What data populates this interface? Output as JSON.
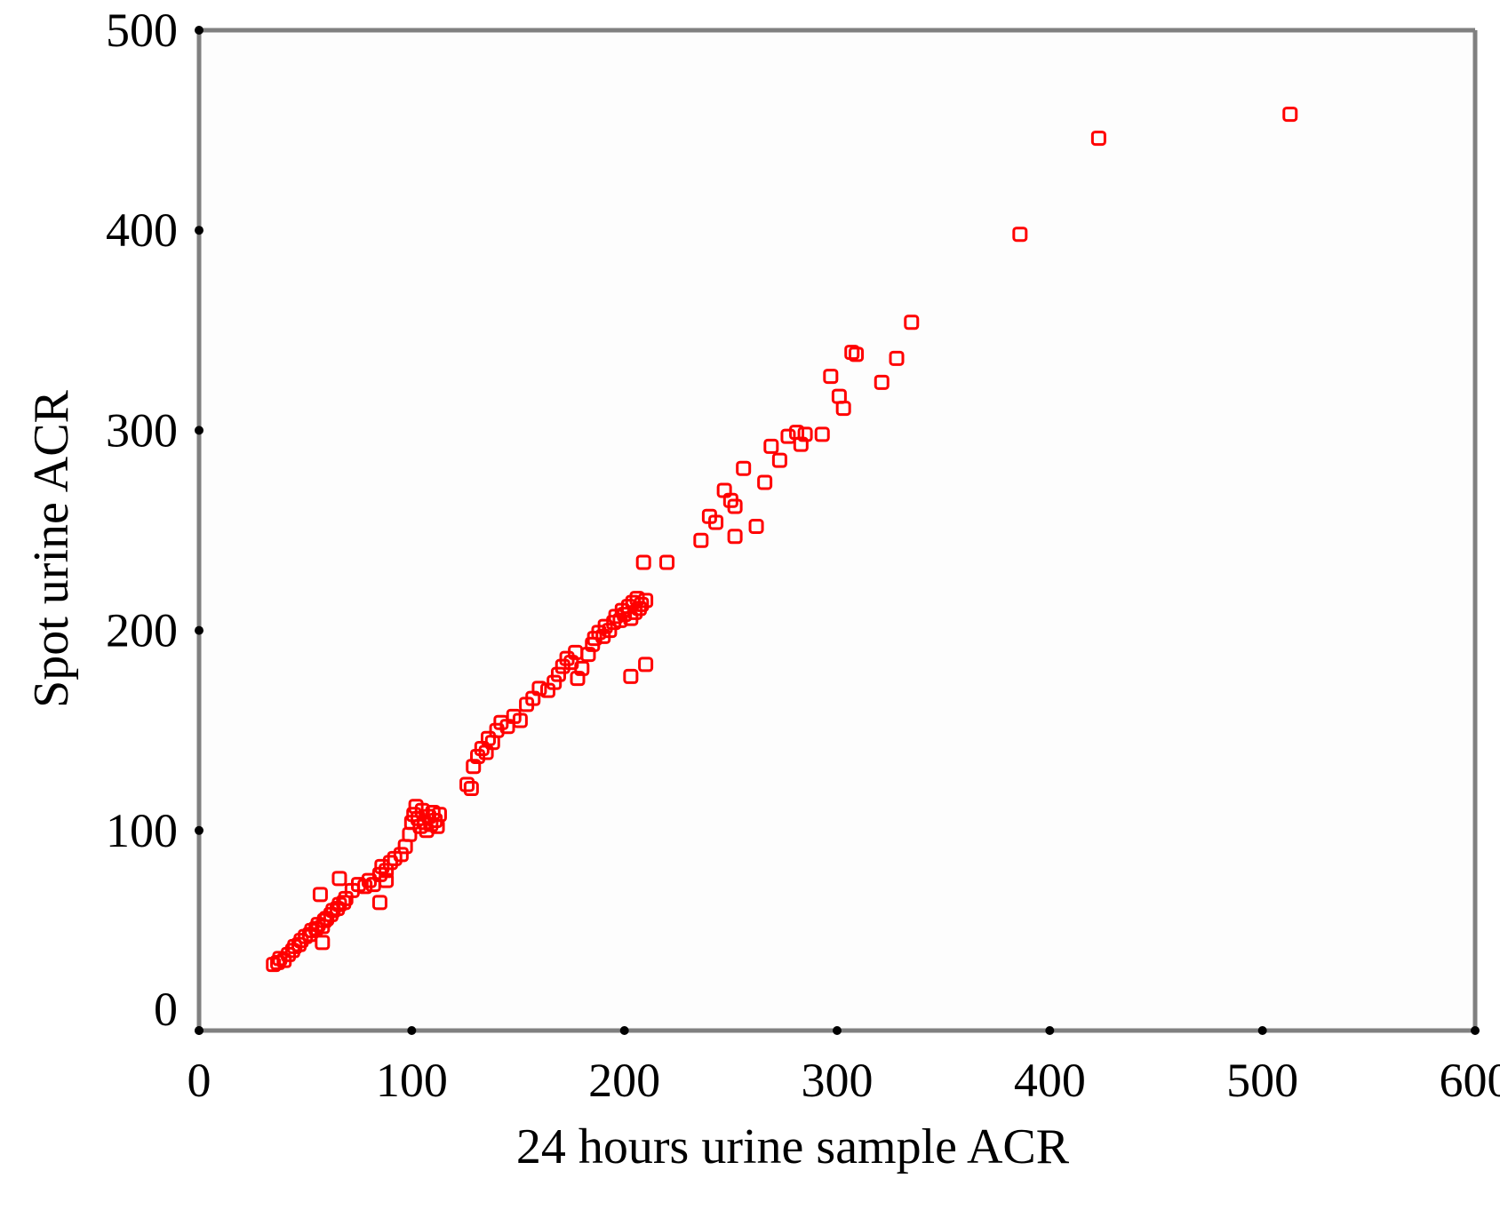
{
  "chart_data": {
    "type": "scatter",
    "title": "",
    "xlabel": "24 hours urine sample ACR",
    "ylabel": "Spot urine ACR",
    "xlim": [
      0,
      600
    ],
    "ylim": [
      0,
      500
    ],
    "xticks": [
      "0",
      "100",
      "200",
      "300",
      "400",
      "500",
      "600"
    ],
    "yticks": [
      "0",
      "100",
      "200",
      "300",
      "400",
      "500"
    ],
    "grid": false,
    "legend": "none",
    "marker": "open-square",
    "marker_color": "#ff0000",
    "axis_color": "#808080",
    "series": [
      {
        "points": [
          [
            35,
            33
          ],
          [
            37,
            34
          ],
          [
            38,
            36
          ],
          [
            40,
            35
          ],
          [
            42,
            38
          ],
          [
            44,
            40
          ],
          [
            45,
            42
          ],
          [
            47,
            43
          ],
          [
            48,
            45
          ],
          [
            50,
            47
          ],
          [
            52,
            48
          ],
          [
            53,
            50
          ],
          [
            55,
            51
          ],
          [
            56,
            53
          ],
          [
            58,
            52
          ],
          [
            59,
            55
          ],
          [
            60,
            56
          ],
          [
            62,
            58
          ],
          [
            63,
            60
          ],
          [
            65,
            61
          ],
          [
            66,
            63
          ],
          [
            68,
            64
          ],
          [
            69,
            66
          ],
          [
            57,
            68
          ],
          [
            66,
            76
          ],
          [
            58,
            44
          ],
          [
            72,
            70
          ],
          [
            75,
            73
          ],
          [
            78,
            72
          ],
          [
            80,
            75
          ],
          [
            82,
            73
          ],
          [
            85,
            78
          ],
          [
            86,
            82
          ],
          [
            88,
            80
          ],
          [
            90,
            84
          ],
          [
            92,
            86
          ],
          [
            85,
            64
          ],
          [
            88,
            75
          ],
          [
            95,
            88
          ],
          [
            97,
            92
          ],
          [
            99,
            98
          ],
          [
            100,
            104
          ],
          [
            101,
            108
          ],
          [
            102,
            112
          ],
          [
            103,
            106
          ],
          [
            104,
            102
          ],
          [
            105,
            110
          ],
          [
            106,
            104
          ],
          [
            107,
            100
          ],
          [
            108,
            107
          ],
          [
            109,
            103
          ],
          [
            110,
            109
          ],
          [
            111,
            105
          ],
          [
            112,
            102
          ],
          [
            113,
            108
          ],
          [
            126,
            123
          ],
          [
            128,
            121
          ],
          [
            129,
            132
          ],
          [
            131,
            137
          ],
          [
            133,
            141
          ],
          [
            135,
            139
          ],
          [
            136,
            146
          ],
          [
            138,
            144
          ],
          [
            140,
            150
          ],
          [
            142,
            154
          ],
          [
            145,
            152
          ],
          [
            148,
            157
          ],
          [
            151,
            155
          ],
          [
            154,
            163
          ],
          [
            157,
            166
          ],
          [
            160,
            171
          ],
          [
            164,
            170
          ],
          [
            167,
            174
          ],
          [
            169,
            178
          ],
          [
            171,
            182
          ],
          [
            173,
            186
          ],
          [
            175,
            184
          ],
          [
            177,
            189
          ],
          [
            180,
            181
          ],
          [
            178,
            176
          ],
          [
            183,
            188
          ],
          [
            185,
            193
          ],
          [
            186,
            196
          ],
          [
            188,
            199
          ],
          [
            190,
            197
          ],
          [
            191,
            202
          ],
          [
            193,
            200
          ],
          [
            195,
            204
          ],
          [
            196,
            207
          ],
          [
            198,
            205
          ],
          [
            199,
            210
          ],
          [
            200,
            208
          ],
          [
            202,
            212
          ],
          [
            203,
            206
          ],
          [
            204,
            214
          ],
          [
            205,
            209
          ],
          [
            206,
            216
          ],
          [
            207,
            211
          ],
          [
            208,
            213
          ],
          [
            210,
            215
          ],
          [
            203,
            177
          ],
          [
            210,
            183
          ],
          [
            209,
            234
          ],
          [
            220,
            234
          ],
          [
            236,
            245
          ],
          [
            240,
            257
          ],
          [
            243,
            254
          ],
          [
            247,
            270
          ],
          [
            250,
            265
          ],
          [
            252,
            262
          ],
          [
            252,
            247
          ],
          [
            256,
            281
          ],
          [
            262,
            252
          ],
          [
            266,
            274
          ],
          [
            269,
            292
          ],
          [
            273,
            285
          ],
          [
            277,
            297
          ],
          [
            281,
            299
          ],
          [
            283,
            293
          ],
          [
            285,
            298
          ],
          [
            293,
            298
          ],
          [
            297,
            327
          ],
          [
            301,
            317
          ],
          [
            303,
            311
          ],
          [
            307,
            339
          ],
          [
            309,
            338
          ],
          [
            321,
            324
          ],
          [
            328,
            336
          ],
          [
            335,
            354
          ],
          [
            386,
            398
          ],
          [
            423,
            446
          ],
          [
            513,
            458
          ]
        ]
      }
    ]
  }
}
